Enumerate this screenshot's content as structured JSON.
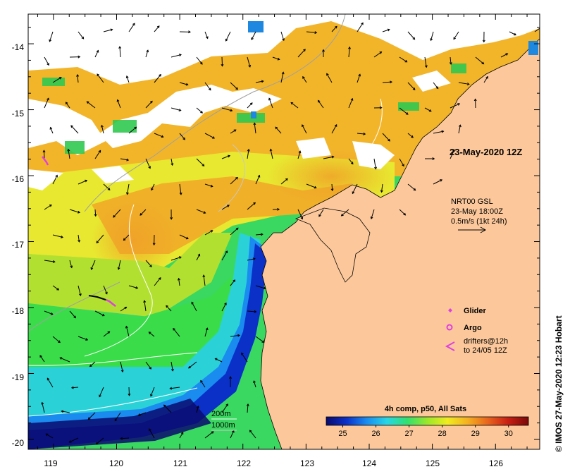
{
  "map": {
    "date_label": "23-May-2020 12Z",
    "x_ticks": [
      "119",
      "120",
      "121",
      "122",
      "123",
      "124",
      "125",
      "126"
    ],
    "y_ticks": [
      "-14",
      "-15",
      "-16",
      "-17",
      "-18",
      "-19",
      "-20"
    ],
    "lon_range": [
      118.6,
      126.7
    ],
    "lat_range": [
      -20.15,
      -13.55
    ],
    "colors": {
      "land": "#fcc89b",
      "cloud": "#ffffff",
      "coast": "#000000",
      "glider": "#e040e0"
    }
  },
  "currents": {
    "source": "NRT00 GSL",
    "time": "23-May 18:00Z",
    "scale": "0.5m/s (1kt 24h)"
  },
  "legend": {
    "glider": "Glider",
    "argo": "Argo",
    "drifters_line1": "drifters@12h",
    "drifters_line2": "to 24/05 12Z"
  },
  "isobaths": {
    "label_200": "200m",
    "label_1000": "1000m"
  },
  "colorbar": {
    "title": "4h comp, p50, All Sats",
    "ticks": [
      "25",
      "26",
      "27",
      "28",
      "29",
      "30"
    ],
    "range": [
      24.5,
      30.6
    ],
    "stops": [
      "#0a0a6e",
      "#0a30c8",
      "#1a8cf0",
      "#28d6e6",
      "#30e070",
      "#9ae82a",
      "#f0ec20",
      "#f4b020",
      "#e8641e",
      "#c81e14",
      "#7a0a0a"
    ]
  },
  "credit": "© IMOS 27-May-2020 12:23 Hobart"
}
